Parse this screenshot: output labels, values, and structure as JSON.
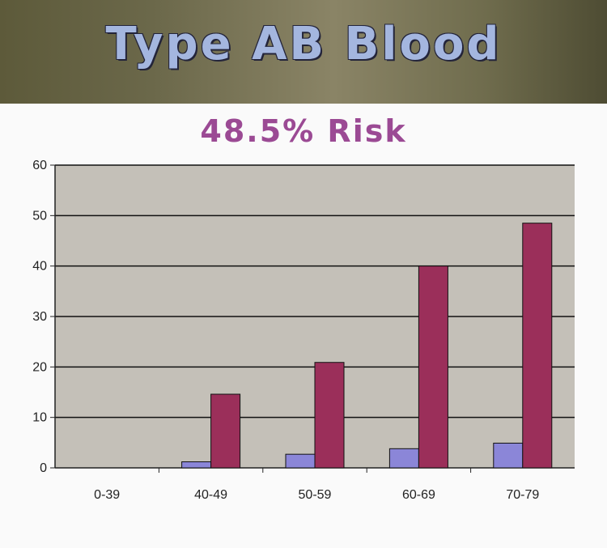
{
  "header": {
    "title": "Type AB Blood"
  },
  "chart_data": {
    "type": "bar",
    "title": "48.5% Risk",
    "categories": [
      "0-39",
      "40-49",
      "50-59",
      "60-69",
      "70-79"
    ],
    "series": [
      {
        "values": [
          0,
          1.2,
          2.7,
          3.8,
          4.9
        ],
        "color": "#8b86d8"
      },
      {
        "values": [
          0,
          14.6,
          20.9,
          40,
          48.5
        ],
        "color": "#9b2f5a"
      }
    ],
    "ylim": [
      0,
      60
    ],
    "yticks": [
      0,
      10,
      20,
      30,
      40,
      50,
      60
    ],
    "grid": true,
    "plot_background": "#c4c0b8"
  }
}
